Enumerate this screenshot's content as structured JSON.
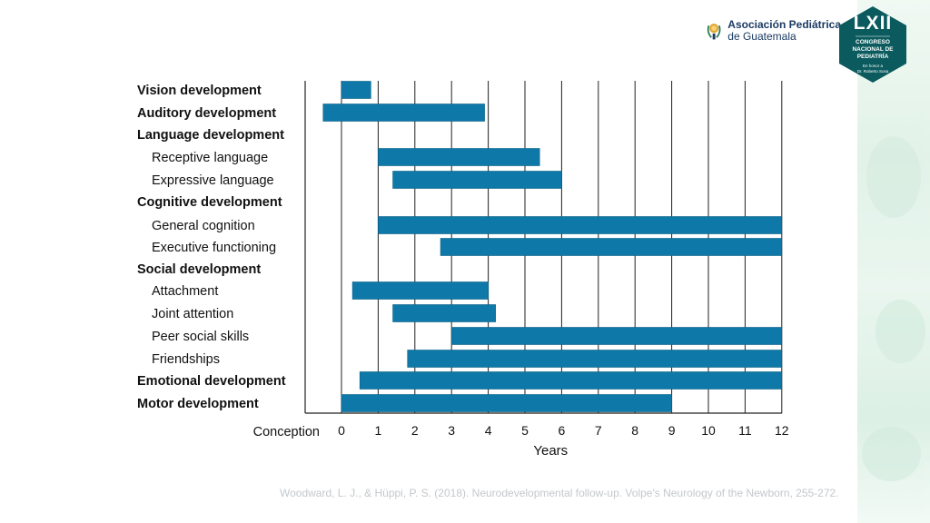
{
  "header": {
    "org_name_line1": "Asociación Pediátrica",
    "org_name_line2": "de Guatemala",
    "congress_numeral": "LXII",
    "congress_line1": "CONGRESO",
    "congress_line2": "NACIONAL DE",
    "congress_line3": "PEDIATRÍA",
    "honor_line1": "En honor a",
    "honor_line2": "Dr. Roberto Sosa"
  },
  "citation": "Woodward, L. J., & Hüppi, P. S. (2018). Neurodevelopmental follow-up. Volpe's Neurology of the Newborn, 255-272.",
  "colors": {
    "bar": "#0e79a8",
    "brand_teal": "#0b5b5e",
    "brand_navy": "#1b3a63",
    "citation": "#c4c8cc"
  },
  "chart_data": {
    "type": "bar",
    "orientation": "horizontal-range",
    "title": "",
    "xlabel": "Years",
    "x_origin_label": "Conception",
    "xlim": [
      -0.5,
      12
    ],
    "x_ticks": [
      0,
      1,
      2,
      3,
      4,
      5,
      6,
      7,
      8,
      9,
      10,
      11,
      12
    ],
    "grid": true,
    "rows": [
      {
        "label": "Vision development",
        "heading": true,
        "start": 0,
        "end": 0.8
      },
      {
        "label": "Auditory development",
        "heading": true,
        "start": -0.5,
        "end": 3.9
      },
      {
        "label": "Language development",
        "heading": true,
        "start": null,
        "end": null
      },
      {
        "label": "Receptive language",
        "heading": false,
        "start": 1,
        "end": 5.4
      },
      {
        "label": "Expressive language",
        "heading": false,
        "start": 1.4,
        "end": 6
      },
      {
        "label": "Cognitive development",
        "heading": true,
        "start": null,
        "end": null
      },
      {
        "label": "General cognition",
        "heading": false,
        "start": 1,
        "end": 12
      },
      {
        "label": "Executive functioning",
        "heading": false,
        "start": 2.7,
        "end": 12
      },
      {
        "label": "Social development",
        "heading": true,
        "start": null,
        "end": null
      },
      {
        "label": "Attachment",
        "heading": false,
        "start": 0.3,
        "end": 4
      },
      {
        "label": "Joint attention",
        "heading": false,
        "start": 1.4,
        "end": 4.2
      },
      {
        "label": "Peer social skills",
        "heading": false,
        "start": 3,
        "end": 12
      },
      {
        "label": "Friendships",
        "heading": false,
        "start": 1.8,
        "end": 12
      },
      {
        "label": "Emotional development",
        "heading": true,
        "start": 0.5,
        "end": 12
      },
      {
        "label": "Motor development",
        "heading": true,
        "start": 0,
        "end": 9
      }
    ]
  }
}
